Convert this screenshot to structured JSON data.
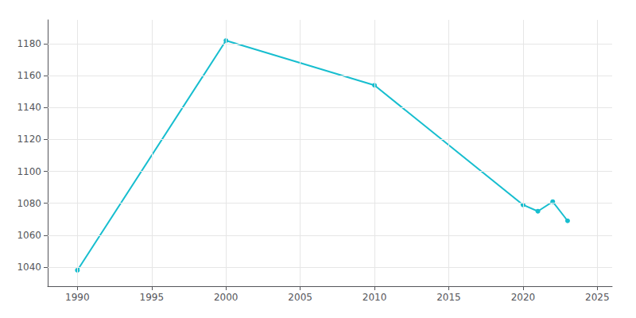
{
  "chart_data": {
    "type": "line",
    "x": [
      1990,
      2000,
      2010,
      2020,
      2021,
      2022,
      2023
    ],
    "values": [
      1038,
      1182,
      1154,
      1079,
      1075,
      1081,
      1069
    ],
    "color": "#17BECF",
    "marker": "circle",
    "xlim": [
      1988,
      2026
    ],
    "xticks": [
      1990,
      1995,
      2000,
      2005,
      2010,
      2015,
      2020,
      2025
    ],
    "ylim": [
      1028,
      1195
    ],
    "yticks": [
      1040,
      1060,
      1080,
      1100,
      1120,
      1140,
      1160,
      1180
    ],
    "grid": true
  }
}
